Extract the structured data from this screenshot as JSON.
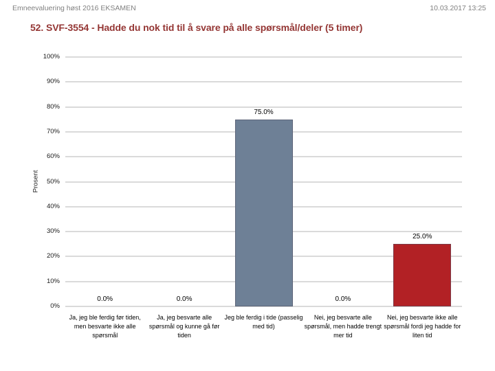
{
  "header": {
    "report_name": "Emneevaluering høst 2016 EKSAMEN",
    "datetime": "10.03.2017 13:25"
  },
  "colors": {
    "title_text": "#943634",
    "header_text": "#808080",
    "gridline": "#DADADA",
    "bar_slate": "#6E8096",
    "bar_red": "#B22125"
  },
  "chart_data": {
    "type": "bar",
    "title": "52. SVF-3554 - Hadde du nok tid til å svare på alle spørsmål/deler (5 timer)",
    "xlabel": "",
    "ylabel": "Prosent",
    "ylim": [
      0,
      100
    ],
    "ytick_step": 10,
    "ytick_labels": [
      "0%",
      "10%",
      "20%",
      "30%",
      "40%",
      "50%",
      "60%",
      "70%",
      "80%",
      "90%",
      "100%"
    ],
    "grid": true,
    "legend": "none",
    "categories": [
      "Ja, jeg ble ferdig før tiden,\nmen besvarte ikke alle\nspørsmål",
      "Ja, jeg besvarte alle\nspørsmål og kunne gå før\ntiden",
      "Jeg ble ferdig i tide (passelig\nmed tid)",
      "Nei, jeg besvarte alle\nspørsmål, men hadde trengt\nmer tid",
      "Nei, jeg besvarte ikke alle\nspørsmål fordi jeg hadde for\nliten tid"
    ],
    "values": [
      0,
      0,
      75,
      0,
      25
    ],
    "value_labels": [
      "0.0%",
      "0.0%",
      "75.0%",
      "0.0%",
      "25.0%"
    ],
    "bar_colors": [
      null,
      null,
      "#6E8096",
      null,
      "#B22125"
    ]
  }
}
